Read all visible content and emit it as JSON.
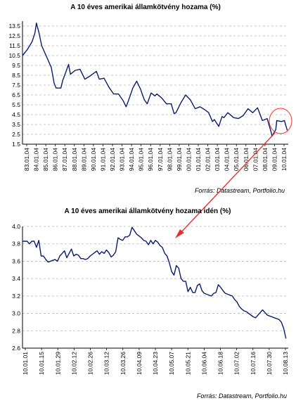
{
  "charts": [
    {
      "source": "Forrás: Datastream, Portfolio.hu"
    },
    {
      "source": "Forrás: Datastream, Portfolio.hu"
    }
  ],
  "chart_data": [
    {
      "type": "line",
      "title": "A 10 éves amerikai államkötvény hozama (%)",
      "xlabel": "",
      "ylabel": "",
      "ylim": [
        1.5,
        14.0
      ],
      "yticks": [
        "1.5",
        "2.5",
        "3.5",
        "4.5",
        "5.5",
        "6.5",
        "7.5",
        "8.5",
        "9.5",
        "10.5",
        "11.5",
        "12.5",
        "13.5"
      ],
      "xticks": [
        "83.01.04",
        "84.01.04",
        "85.01.04",
        "86.01.04",
        "87.01.04",
        "88.01.04",
        "89.01.04",
        "90.01.04",
        "91.01.04",
        "92.01.04",
        "93.01.04",
        "94.01.04",
        "95.01.04",
        "96.01.04",
        "97.01.04",
        "98.01.04",
        "99.01.04",
        "00.01.04",
        "01.01.04",
        "02.01.04",
        "03.01.04",
        "04.01.04",
        "05.01.04",
        "06.01.04",
        "07.01.04",
        "08.01.04",
        "09.01.04",
        "10.01.04"
      ],
      "grid": true,
      "x": [
        1983.0,
        1983.5,
        1984.0,
        1984.3,
        1984.45,
        1984.7,
        1985.0,
        1985.5,
        1986.0,
        1986.3,
        1986.5,
        1987.0,
        1987.2,
        1987.4,
        1987.8,
        1988.0,
        1988.5,
        1989.0,
        1989.5,
        1990.0,
        1990.7,
        1991.0,
        1991.5,
        1992.0,
        1992.5,
        1993.0,
        1993.5,
        1993.8,
        1994.0,
        1994.5,
        1994.9,
        1995.3,
        1995.7,
        1996.0,
        1996.4,
        1996.8,
        1997.0,
        1997.5,
        1998.0,
        1998.5,
        1998.8,
        1999.0,
        1999.5,
        2000.0,
        2000.5,
        2001.0,
        2001.5,
        2002.0,
        2002.4,
        2002.8,
        2003.0,
        2003.45,
        2003.8,
        2004.0,
        2004.4,
        2005.0,
        2005.5,
        2006.0,
        2006.5,
        2007.0,
        2007.5,
        2008.0,
        2008.5,
        2008.95,
        2009.0,
        2009.4,
        2009.5,
        2010.0,
        2010.3,
        2010.6
      ],
      "series": [
        {
          "values": [
            10.5,
            11.1,
            11.9,
            12.8,
            13.8,
            12.9,
            11.5,
            10.4,
            9.3,
            7.7,
            7.2,
            7.2,
            8.0,
            8.5,
            9.6,
            8.6,
            9.0,
            9.1,
            8.1,
            8.4,
            8.9,
            8.1,
            8.2,
            7.3,
            6.6,
            6.6,
            5.9,
            5.3,
            5.8,
            7.2,
            7.9,
            7.1,
            6.0,
            5.6,
            6.7,
            6.4,
            6.6,
            6.2,
            5.6,
            5.6,
            4.6,
            4.7,
            5.7,
            6.5,
            6.0,
            5.1,
            5.3,
            5.0,
            4.7,
            3.8,
            4.0,
            3.3,
            4.3,
            4.2,
            4.7,
            4.2,
            4.1,
            4.4,
            5.1,
            4.7,
            5.2,
            3.9,
            4.1,
            2.6,
            2.3,
            3.0,
            3.9,
            3.8,
            3.9,
            2.9
          ]
        }
      ]
    },
    {
      "type": "line",
      "title": "A 10 éves amerikai államkötvény hozama idén (%)",
      "xlabel": "",
      "ylabel": "",
      "ylim": [
        2.6,
        4.0
      ],
      "yticks": [
        "2.6",
        "2.8",
        "3.0",
        "3.2",
        "3.4",
        "3.6",
        "3.8",
        "4.0"
      ],
      "xticks": [
        "10.01.01",
        "10.01.15",
        "10.01.29",
        "10.02.12",
        "10.02.26",
        "10.03.12",
        "10.03.26",
        "10.04.09",
        "10.04.23",
        "10.05.07",
        "10.05.21",
        "10.06.04",
        "10.06.18",
        "10.07.02",
        "10.07.16",
        "10.07.30",
        "10.08.13"
      ],
      "grid": true,
      "x": [
        0,
        2,
        4,
        6,
        8,
        10,
        12,
        14,
        16,
        18,
        20,
        22,
        24,
        26,
        28,
        30,
        32,
        34,
        36,
        38,
        40,
        42,
        44,
        46,
        48,
        50,
        52,
        54,
        56,
        58,
        60,
        62,
        64,
        66,
        68,
        70,
        72,
        74,
        76,
        78,
        80,
        82,
        84,
        86,
        88,
        90,
        92,
        94,
        96,
        98,
        100,
        102,
        104,
        106,
        108,
        110,
        112,
        114,
        116,
        118,
        120,
        122,
        124,
        126,
        128,
        130,
        132,
        134,
        136,
        138,
        140,
        142,
        144,
        146,
        148,
        150,
        152,
        154,
        156,
        158,
        160,
        162,
        164,
        166,
        168,
        170,
        172,
        174,
        176,
        178,
        180,
        182,
        184,
        186,
        188,
        190,
        192,
        194,
        196,
        198,
        200,
        202,
        204,
        206,
        208,
        210,
        212,
        214,
        216,
        218,
        220,
        222,
        224,
        226
      ],
      "series": [
        {
          "values": [
            3.83,
            3.83,
            3.83,
            3.8,
            3.83,
            3.83,
            3.76,
            3.84,
            3.66,
            3.66,
            3.62,
            3.59,
            3.6,
            3.61,
            3.62,
            3.6,
            3.66,
            3.69,
            3.72,
            3.64,
            3.69,
            3.74,
            3.66,
            3.68,
            3.67,
            3.63,
            3.63,
            3.62,
            3.63,
            3.66,
            3.68,
            3.7,
            3.72,
            3.68,
            3.71,
            3.69,
            3.73,
            3.7,
            3.65,
            3.67,
            3.71,
            3.87,
            3.85,
            3.84,
            3.88,
            3.88,
            3.9,
            3.99,
            3.95,
            3.91,
            3.89,
            3.87,
            3.84,
            3.83,
            3.79,
            3.84,
            3.8,
            3.84,
            3.82,
            3.78,
            3.76,
            3.69,
            3.66,
            3.58,
            3.48,
            3.44,
            3.55,
            3.52,
            3.4,
            3.37,
            3.37,
            3.25,
            3.3,
            3.24,
            3.24,
            3.32,
            3.34,
            3.26,
            3.23,
            3.22,
            3.21,
            3.2,
            3.23,
            3.24,
            3.33,
            3.3,
            3.26,
            3.23,
            3.22,
            3.21,
            3.2,
            3.16,
            3.13,
            3.08,
            3.05,
            3.03,
            3.02,
            3.0,
            2.98,
            2.96,
            2.95,
            2.98,
            3.01,
            3.04,
            3.01,
            2.98,
            2.97,
            2.96,
            2.95,
            2.94,
            2.93,
            2.9,
            2.83,
            2.71
          ]
        }
      ]
    }
  ]
}
